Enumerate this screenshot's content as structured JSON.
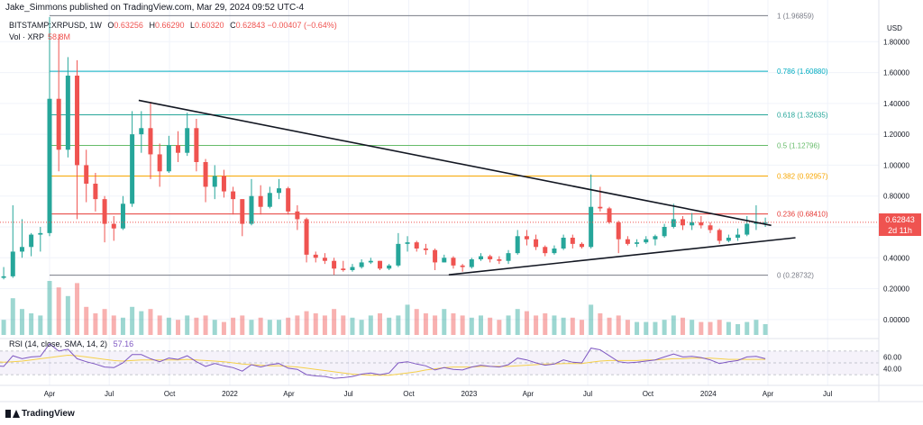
{
  "header": {
    "text": "Jake_Simmons published on TradingView.com, Mar 29, 2024 09:52 UTC-4"
  },
  "legend": {
    "symbol": "BITSTAMP:XRPUSD, 1W",
    "ohlc": [
      {
        "k": "O",
        "v": "0.63256"
      },
      {
        "k": "H",
        "v": "0.66290"
      },
      {
        "k": "L",
        "v": "0.60320"
      },
      {
        "k": "C",
        "v": "0.62843"
      }
    ],
    "change": "−0.00407 (−0.64%)",
    "vol_label": "Vol · XRP",
    "vol_value": "58.8M"
  },
  "rsi": {
    "label": "RSI (14, close, SMA, 14, 2)",
    "value": "57.16"
  },
  "price_tag": {
    "price": "0.62843",
    "countdown": "2d 11h"
  },
  "footer": {
    "brand": "TradingView"
  },
  "colors": {
    "up": "#26a69a",
    "down": "#ef5350",
    "rsi": "#7e57c2",
    "rsi_ma": "#f5d04a",
    "trendline": "#131722"
  },
  "chart_data": {
    "type": "candlestick",
    "interval": "1W",
    "currency": "USD",
    "ylim": [
      -0.1,
      2.0
    ],
    "y_ticks": [
      "1.80000",
      "1.60000",
      "1.40000",
      "1.20000",
      "1.00000",
      "0.80000",
      "0.60000",
      "0.40000",
      "0.20000",
      "0.00000"
    ],
    "y_tick_values": [
      1.8,
      1.6,
      1.4,
      1.2,
      1.0,
      0.8,
      0.6,
      0.4,
      0.2,
      0.0
    ],
    "x_axis_labels": [
      "Apr",
      "Jul",
      "Oct",
      "2022",
      "Apr",
      "Jul",
      "Oct",
      "2023",
      "Apr",
      "Jul",
      "Oct",
      "2024",
      "Apr",
      "Jul"
    ],
    "x_axis_dates": [
      "2021-04-01",
      "2021-07-01",
      "2021-10-01",
      "2022-01-01",
      "2022-04-01",
      "2022-07-01",
      "2022-10-01",
      "2023-01-01",
      "2023-04-01",
      "2023-07-01",
      "2023-10-01",
      "2024-01-01",
      "2024-04-01",
      "2024-07-01"
    ],
    "fib_levels": [
      {
        "label": "1 (1.96859)",
        "value": 1.96859,
        "color": "#787b86"
      },
      {
        "label": "0.786 (1.60880)",
        "value": 1.6088,
        "color": "#00acc1"
      },
      {
        "label": "0.618 (1.32635)",
        "value": 1.32635,
        "color": "#26a69a"
      },
      {
        "label": "0.5 (1.12796)",
        "value": 1.12796,
        "color": "#66bb6a"
      },
      {
        "label": "0.382 (0.92957)",
        "value": 0.92957,
        "color": "#f7a600"
      },
      {
        "label": "0.236 (0.68410)",
        "value": 0.6841,
        "color": "#e53935"
      },
      {
        "label": "0 (0.28732)",
        "value": 0.28732,
        "color": "#787b86"
      }
    ],
    "trendlines": [
      {
        "name": "descending",
        "from": {
          "date": "2021-08-15",
          "price": 1.42
        },
        "to": {
          "date": "2024-04-06",
          "price": 0.61
        }
      },
      {
        "name": "ascending",
        "from": {
          "date": "2022-12-01",
          "price": 0.29
        },
        "to": {
          "date": "2024-05-13",
          "price": 0.53
        }
      }
    ],
    "candles": [
      {
        "date": "2021-01-07",
        "o": 0.32,
        "h": 0.34,
        "l": 0.22,
        "c": 0.27
      },
      {
        "date": "2021-01-21",
        "o": 0.27,
        "h": 0.34,
        "l": 0.26,
        "c": 0.28
      },
      {
        "date": "2021-02-04",
        "o": 0.28,
        "h": 0.74,
        "l": 0.27,
        "c": 0.44
      },
      {
        "date": "2021-02-18",
        "o": 0.44,
        "h": 0.65,
        "l": 0.4,
        "c": 0.47
      },
      {
        "date": "2021-03-04",
        "o": 0.47,
        "h": 0.56,
        "l": 0.41,
        "c": 0.55
      },
      {
        "date": "2021-03-18",
        "o": 0.55,
        "h": 0.6,
        "l": 0.44,
        "c": 0.56
      },
      {
        "date": "2021-04-01",
        "o": 0.56,
        "h": 1.96,
        "l": 0.54,
        "c": 1.43
      },
      {
        "date": "2021-04-15",
        "o": 1.43,
        "h": 1.85,
        "l": 0.96,
        "c": 1.1
      },
      {
        "date": "2021-04-29",
        "o": 1.1,
        "h": 1.7,
        "l": 1.05,
        "c": 1.58
      },
      {
        "date": "2021-05-13",
        "o": 1.58,
        "h": 1.68,
        "l": 0.65,
        "c": 1.0
      },
      {
        "date": "2021-05-27",
        "o": 1.0,
        "h": 1.1,
        "l": 0.76,
        "c": 0.88
      },
      {
        "date": "2021-06-10",
        "o": 0.88,
        "h": 0.95,
        "l": 0.7,
        "c": 0.78
      },
      {
        "date": "2021-06-24",
        "o": 0.78,
        "h": 0.8,
        "l": 0.5,
        "c": 0.62
      },
      {
        "date": "2021-07-08",
        "o": 0.62,
        "h": 0.67,
        "l": 0.51,
        "c": 0.59
      },
      {
        "date": "2021-07-22",
        "o": 0.59,
        "h": 0.8,
        "l": 0.58,
        "c": 0.75
      },
      {
        "date": "2021-08-05",
        "o": 0.75,
        "h": 1.35,
        "l": 0.73,
        "c": 1.2
      },
      {
        "date": "2021-08-19",
        "o": 1.2,
        "h": 1.35,
        "l": 1.08,
        "c": 1.24
      },
      {
        "date": "2021-09-02",
        "o": 1.24,
        "h": 1.41,
        "l": 0.91,
        "c": 1.07
      },
      {
        "date": "2021-09-16",
        "o": 1.07,
        "h": 1.14,
        "l": 0.86,
        "c": 0.96
      },
      {
        "date": "2021-09-30",
        "o": 0.96,
        "h": 1.19,
        "l": 0.95,
        "c": 1.13
      },
      {
        "date": "2021-10-14",
        "o": 1.13,
        "h": 1.22,
        "l": 1.02,
        "c": 1.08
      },
      {
        "date": "2021-10-28",
        "o": 1.08,
        "h": 1.34,
        "l": 1.06,
        "c": 1.24
      },
      {
        "date": "2021-11-11",
        "o": 1.24,
        "h": 1.3,
        "l": 0.96,
        "c": 1.02
      },
      {
        "date": "2021-11-25",
        "o": 1.02,
        "h": 1.04,
        "l": 0.76,
        "c": 0.86
      },
      {
        "date": "2021-12-09",
        "o": 0.86,
        "h": 1.0,
        "l": 0.78,
        "c": 0.93
      },
      {
        "date": "2021-12-23",
        "o": 0.93,
        "h": 0.97,
        "l": 0.79,
        "c": 0.83
      },
      {
        "date": "2022-01-06",
        "o": 0.83,
        "h": 0.86,
        "l": 0.68,
        "c": 0.78
      },
      {
        "date": "2022-01-20",
        "o": 0.78,
        "h": 0.78,
        "l": 0.54,
        "c": 0.62
      },
      {
        "date": "2022-02-03",
        "o": 0.62,
        "h": 0.91,
        "l": 0.61,
        "c": 0.8
      },
      {
        "date": "2022-02-17",
        "o": 0.8,
        "h": 0.87,
        "l": 0.68,
        "c": 0.73
      },
      {
        "date": "2022-03-03",
        "o": 0.73,
        "h": 0.86,
        "l": 0.72,
        "c": 0.82
      },
      {
        "date": "2022-03-17",
        "o": 0.82,
        "h": 0.91,
        "l": 0.78,
        "c": 0.85
      },
      {
        "date": "2022-03-31",
        "o": 0.85,
        "h": 0.86,
        "l": 0.68,
        "c": 0.7
      },
      {
        "date": "2022-04-14",
        "o": 0.7,
        "h": 0.74,
        "l": 0.58,
        "c": 0.65
      },
      {
        "date": "2022-04-28",
        "o": 0.65,
        "h": 0.66,
        "l": 0.37,
        "c": 0.42
      },
      {
        "date": "2022-05-12",
        "o": 0.42,
        "h": 0.44,
        "l": 0.37,
        "c": 0.4
      },
      {
        "date": "2022-05-26",
        "o": 0.4,
        "h": 0.43,
        "l": 0.36,
        "c": 0.38
      },
      {
        "date": "2022-06-09",
        "o": 0.38,
        "h": 0.4,
        "l": 0.29,
        "c": 0.33
      },
      {
        "date": "2022-06-23",
        "o": 0.33,
        "h": 0.38,
        "l": 0.31,
        "c": 0.32
      },
      {
        "date": "2022-07-07",
        "o": 0.32,
        "h": 0.36,
        "l": 0.31,
        "c": 0.34
      },
      {
        "date": "2022-07-21",
        "o": 0.34,
        "h": 0.39,
        "l": 0.33,
        "c": 0.37
      },
      {
        "date": "2022-08-04",
        "o": 0.37,
        "h": 0.4,
        "l": 0.36,
        "c": 0.38
      },
      {
        "date": "2022-08-18",
        "o": 0.38,
        "h": 0.38,
        "l": 0.32,
        "c": 0.33
      },
      {
        "date": "2022-09-01",
        "o": 0.33,
        "h": 0.36,
        "l": 0.32,
        "c": 0.35
      },
      {
        "date": "2022-09-15",
        "o": 0.35,
        "h": 0.56,
        "l": 0.34,
        "c": 0.49
      },
      {
        "date": "2022-09-29",
        "o": 0.49,
        "h": 0.54,
        "l": 0.44,
        "c": 0.5
      },
      {
        "date": "2022-10-13",
        "o": 0.5,
        "h": 0.51,
        "l": 0.44,
        "c": 0.46
      },
      {
        "date": "2022-10-27",
        "o": 0.46,
        "h": 0.49,
        "l": 0.42,
        "c": 0.45
      },
      {
        "date": "2022-11-10",
        "o": 0.45,
        "h": 0.46,
        "l": 0.32,
        "c": 0.37
      },
      {
        "date": "2022-11-24",
        "o": 0.37,
        "h": 0.42,
        "l": 0.37,
        "c": 0.4
      },
      {
        "date": "2022-12-08",
        "o": 0.4,
        "h": 0.41,
        "l": 0.33,
        "c": 0.35
      },
      {
        "date": "2022-12-22",
        "o": 0.35,
        "h": 0.36,
        "l": 0.31,
        "c": 0.34
      },
      {
        "date": "2023-01-05",
        "o": 0.34,
        "h": 0.4,
        "l": 0.33,
        "c": 0.39
      },
      {
        "date": "2023-01-19",
        "o": 0.39,
        "h": 0.43,
        "l": 0.38,
        "c": 0.41
      },
      {
        "date": "2023-02-02",
        "o": 0.41,
        "h": 0.42,
        "l": 0.37,
        "c": 0.39
      },
      {
        "date": "2023-02-16",
        "o": 0.39,
        "h": 0.41,
        "l": 0.36,
        "c": 0.38
      },
      {
        "date": "2023-03-02",
        "o": 0.38,
        "h": 0.45,
        "l": 0.36,
        "c": 0.43
      },
      {
        "date": "2023-03-16",
        "o": 0.43,
        "h": 0.58,
        "l": 0.42,
        "c": 0.54
      },
      {
        "date": "2023-03-30",
        "o": 0.54,
        "h": 0.58,
        "l": 0.48,
        "c": 0.52
      },
      {
        "date": "2023-04-13",
        "o": 0.52,
        "h": 0.55,
        "l": 0.45,
        "c": 0.47
      },
      {
        "date": "2023-04-27",
        "o": 0.47,
        "h": 0.48,
        "l": 0.41,
        "c": 0.43
      },
      {
        "date": "2023-05-11",
        "o": 0.43,
        "h": 0.48,
        "l": 0.42,
        "c": 0.46
      },
      {
        "date": "2023-05-25",
        "o": 0.46,
        "h": 0.55,
        "l": 0.45,
        "c": 0.53
      },
      {
        "date": "2023-06-08",
        "o": 0.53,
        "h": 0.55,
        "l": 0.46,
        "c": 0.49
      },
      {
        "date": "2023-06-22",
        "o": 0.49,
        "h": 0.5,
        "l": 0.46,
        "c": 0.47
      },
      {
        "date": "2023-07-06",
        "o": 0.47,
        "h": 0.94,
        "l": 0.46,
        "c": 0.73
      },
      {
        "date": "2023-07-20",
        "o": 0.73,
        "h": 0.86,
        "l": 0.7,
        "c": 0.72
      },
      {
        "date": "2023-08-03",
        "o": 0.72,
        "h": 0.73,
        "l": 0.62,
        "c": 0.63
      },
      {
        "date": "2023-08-17",
        "o": 0.63,
        "h": 0.64,
        "l": 0.43,
        "c": 0.52
      },
      {
        "date": "2023-08-31",
        "o": 0.52,
        "h": 0.54,
        "l": 0.48,
        "c": 0.49
      },
      {
        "date": "2023-09-14",
        "o": 0.49,
        "h": 0.52,
        "l": 0.47,
        "c": 0.5
      },
      {
        "date": "2023-09-28",
        "o": 0.5,
        "h": 0.54,
        "l": 0.49,
        "c": 0.52
      },
      {
        "date": "2023-10-12",
        "o": 0.52,
        "h": 0.55,
        "l": 0.48,
        "c": 0.54
      },
      {
        "date": "2023-10-26",
        "o": 0.54,
        "h": 0.62,
        "l": 0.53,
        "c": 0.6
      },
      {
        "date": "2023-11-09",
        "o": 0.6,
        "h": 0.75,
        "l": 0.59,
        "c": 0.65
      },
      {
        "date": "2023-11-23",
        "o": 0.65,
        "h": 0.67,
        "l": 0.58,
        "c": 0.61
      },
      {
        "date": "2023-12-07",
        "o": 0.61,
        "h": 0.69,
        "l": 0.58,
        "c": 0.63
      },
      {
        "date": "2023-12-21",
        "o": 0.63,
        "h": 0.67,
        "l": 0.59,
        "c": 0.61
      },
      {
        "date": "2024-01-04",
        "o": 0.61,
        "h": 0.63,
        "l": 0.56,
        "c": 0.58
      },
      {
        "date": "2024-01-18",
        "o": 0.58,
        "h": 0.59,
        "l": 0.49,
        "c": 0.51
      },
      {
        "date": "2024-02-01",
        "o": 0.51,
        "h": 0.55,
        "l": 0.5,
        "c": 0.53
      },
      {
        "date": "2024-02-15",
        "o": 0.53,
        "h": 0.59,
        "l": 0.51,
        "c": 0.55
      },
      {
        "date": "2024-02-29",
        "o": 0.55,
        "h": 0.67,
        "l": 0.54,
        "c": 0.62
      },
      {
        "date": "2024-03-14",
        "o": 0.62,
        "h": 0.74,
        "l": 0.58,
        "c": 0.63
      },
      {
        "date": "2024-03-28",
        "o": 0.63,
        "h": 0.66,
        "l": 0.6,
        "c": 0.63
      }
    ],
    "volume": [
      0.09,
      0.07,
      0.17,
      0.12,
      0.1,
      0.09,
      0.25,
      0.22,
      0.18,
      0.24,
      0.13,
      0.1,
      0.12,
      0.09,
      0.08,
      0.13,
      0.11,
      0.12,
      0.09,
      0.08,
      0.07,
      0.09,
      0.08,
      0.09,
      0.07,
      0.06,
      0.08,
      0.09,
      0.07,
      0.08,
      0.07,
      0.07,
      0.08,
      0.09,
      0.11,
      0.1,
      0.09,
      0.12,
      0.09,
      0.08,
      0.07,
      0.09,
      0.1,
      0.08,
      0.09,
      0.14,
      0.12,
      0.1,
      0.09,
      0.12,
      0.1,
      0.09,
      0.08,
      0.09,
      0.08,
      0.07,
      0.09,
      0.12,
      0.11,
      0.09,
      0.1,
      0.09,
      0.08,
      0.08,
      0.07,
      0.14,
      0.1,
      0.08,
      0.09,
      0.07,
      0.06,
      0.06,
      0.06,
      0.07,
      0.09,
      0.08,
      0.07,
      0.06,
      0.06,
      0.07,
      0.06,
      0.05,
      0.06,
      0.07,
      0.05
    ],
    "rsi_values": [
      45,
      44,
      62,
      57,
      60,
      61,
      82,
      70,
      73,
      57,
      52,
      48,
      43,
      42,
      50,
      64,
      64,
      57,
      52,
      58,
      56,
      62,
      52,
      44,
      49,
      45,
      42,
      36,
      47,
      43,
      47,
      49,
      41,
      39,
      30,
      28,
      27,
      24,
      25,
      27,
      31,
      33,
      30,
      33,
      50,
      52,
      48,
      45,
      38,
      42,
      39,
      38,
      43,
      46,
      44,
      43,
      47,
      58,
      55,
      50,
      46,
      48,
      55,
      51,
      50,
      75,
      72,
      62,
      52,
      50,
      51,
      53,
      55,
      60,
      65,
      60,
      61,
      59,
      55,
      49,
      52,
      54,
      60,
      61,
      57
    ],
    "rsi_ma_values": [
      52,
      51,
      52,
      53,
      55,
      57,
      59,
      61,
      63,
      62,
      60,
      58,
      56,
      54,
      53,
      54,
      55,
      55,
      55,
      55,
      55,
      56,
      55,
      54,
      53,
      52,
      50,
      48,
      47,
      46,
      45,
      45,
      44,
      43,
      41,
      39,
      37,
      35,
      33,
      31,
      30,
      29,
      29,
      29,
      31,
      33,
      35,
      38,
      40,
      42,
      43,
      43,
      43,
      44,
      44,
      44,
      44,
      45,
      46,
      47,
      48,
      48,
      49,
      49,
      49,
      51,
      53,
      54,
      54,
      54,
      54,
      55,
      55,
      56,
      57,
      57,
      58,
      58,
      58,
      57,
      56,
      56,
      56,
      56,
      56
    ],
    "rsi_ticks": [
      "60.00",
      "40.00"
    ],
    "rsi_tick_values": [
      60,
      40
    ]
  }
}
